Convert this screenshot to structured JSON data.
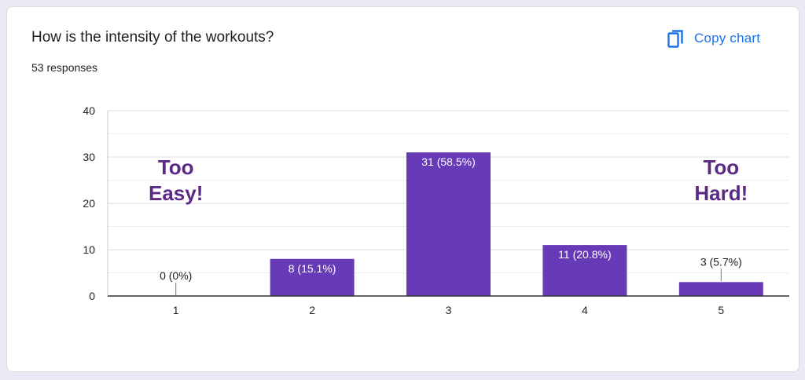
{
  "question": "How is the intensity of the workouts?",
  "responses": "53 responses",
  "copy_button": {
    "label": "Copy chart",
    "icon": "copy-icon"
  },
  "colors": {
    "bar": "#673ab7",
    "annotation": "#5b2a86",
    "accent": "#1a73e8"
  },
  "chart_data": {
    "type": "bar",
    "categories": [
      "1",
      "2",
      "3",
      "4",
      "5"
    ],
    "values": [
      0,
      8,
      31,
      11,
      3
    ],
    "data_labels": [
      "0 (0%)",
      "8 (15.1%)",
      "31 (58.5%)",
      "11 (20.8%)",
      "3 (5.7%)"
    ],
    "ylim": [
      0,
      40
    ],
    "yticks": [
      0,
      10,
      20,
      30,
      40
    ],
    "grid": true,
    "annotations": [
      {
        "lines": [
          "Too",
          "Easy!"
        ],
        "category": "1"
      },
      {
        "lines": [
          "Too",
          "Hard!"
        ],
        "category": "5"
      }
    ]
  }
}
